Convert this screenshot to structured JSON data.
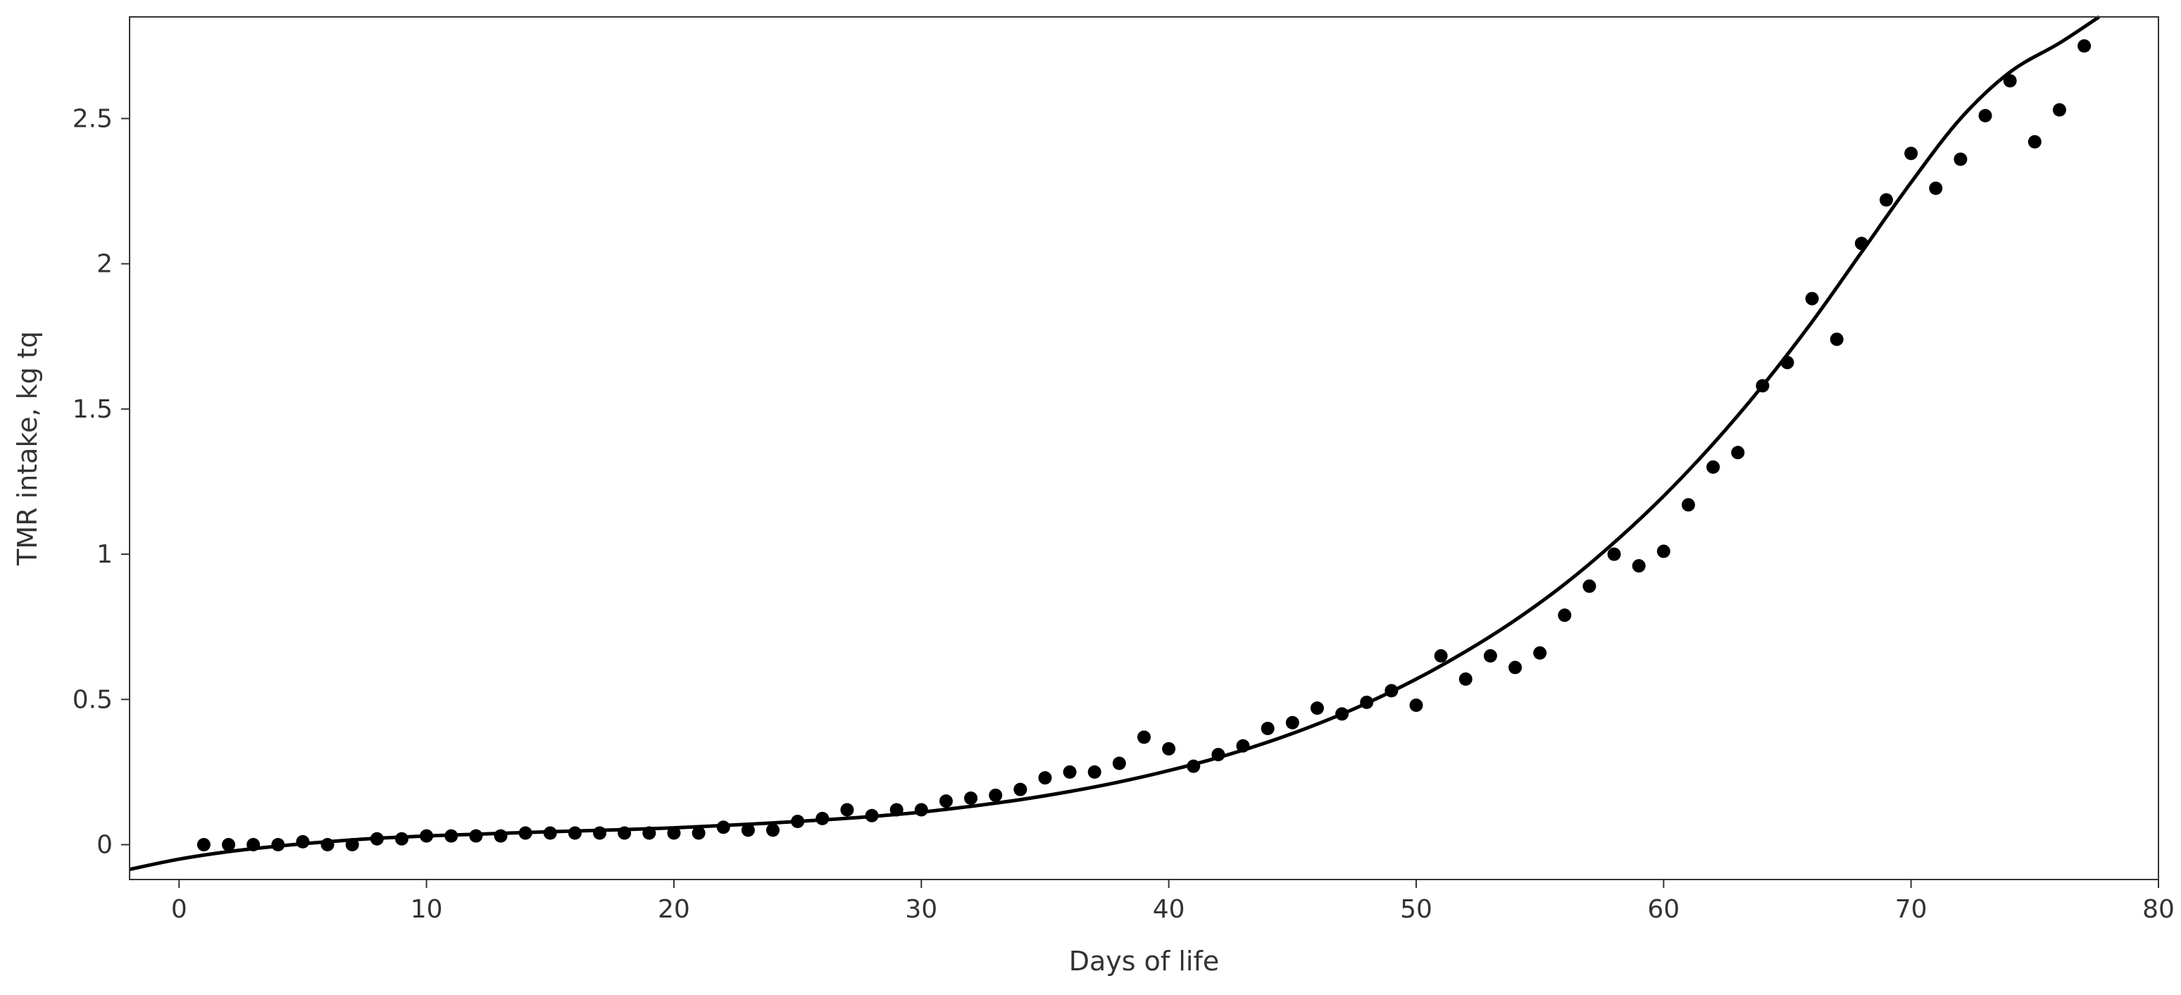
{
  "chart_data": {
    "type": "scatter",
    "xlabel": "Days of life",
    "ylabel": "TMR intake, kg tq",
    "xlim": [
      -2,
      80
    ],
    "ylim": [
      -0.12,
      2.85
    ],
    "xticks": [
      0,
      10,
      20,
      30,
      40,
      50,
      60,
      70,
      80
    ],
    "yticks": [
      0,
      0.5,
      1,
      1.5,
      2,
      2.5
    ],
    "xtick_labels": [
      "0",
      "10",
      "20",
      "30",
      "40",
      "50",
      "60",
      "70",
      "80"
    ],
    "ytick_labels": [
      "0",
      "0.5",
      "1",
      "1.5",
      "2",
      "2.5"
    ],
    "grid": false,
    "series": [
      {
        "kind": "points",
        "color": "#000000",
        "x": [
          1,
          2,
          3,
          4,
          5,
          6,
          7,
          8,
          9,
          10,
          11,
          12,
          13,
          14,
          15,
          16,
          17,
          18,
          19,
          20,
          21,
          22,
          23,
          24,
          25,
          26,
          27,
          28,
          29,
          30,
          31,
          32,
          33,
          34,
          35,
          36,
          37,
          38,
          39,
          40,
          41,
          42,
          43,
          44,
          45,
          46,
          47,
          48,
          49,
          50,
          51,
          52,
          53,
          54,
          55,
          56,
          57,
          58,
          59,
          60,
          61,
          62,
          63,
          64,
          65,
          66,
          67,
          68,
          69,
          70,
          71,
          72,
          73,
          74,
          75,
          76,
          77
        ],
        "y": [
          0.0,
          0.0,
          0.0,
          0.0,
          0.01,
          0.0,
          0.0,
          0.02,
          0.02,
          0.03,
          0.03,
          0.03,
          0.03,
          0.04,
          0.04,
          0.04,
          0.04,
          0.04,
          0.04,
          0.04,
          0.04,
          0.06,
          0.05,
          0.05,
          0.08,
          0.09,
          0.12,
          0.1,
          0.12,
          0.12,
          0.15,
          0.16,
          0.17,
          0.19,
          0.23,
          0.25,
          0.25,
          0.28,
          0.37,
          0.33,
          0.27,
          0.31,
          0.34,
          0.4,
          0.42,
          0.47,
          0.45,
          0.49,
          0.53,
          0.48,
          0.65,
          0.57,
          0.65,
          0.61,
          0.66,
          0.79,
          0.89,
          1.0,
          0.96,
          1.01,
          1.17,
          1.3,
          1.35,
          1.58,
          1.66,
          1.88,
          1.74,
          2.07,
          2.22,
          2.38,
          2.26,
          2.36,
          2.51,
          2.63,
          2.42,
          2.53,
          2.75
        ]
      },
      {
        "kind": "fitted-curve",
        "color": "#000000",
        "x": [
          -2,
          0,
          2,
          4,
          6,
          8,
          10,
          12,
          14,
          16,
          18,
          20,
          22,
          24,
          26,
          28,
          30,
          32,
          34,
          36,
          38,
          40,
          42,
          44,
          46,
          48,
          50,
          52,
          54,
          56,
          58,
          60,
          62,
          64,
          66,
          68,
          70,
          72,
          74,
          76,
          77.6
        ],
        "y": [
          -0.085,
          -0.05,
          -0.024,
          -0.005,
          0.01,
          0.022,
          0.03,
          0.036,
          0.042,
          0.047,
          0.052,
          0.058,
          0.066,
          0.075,
          0.085,
          0.097,
          0.112,
          0.132,
          0.155,
          0.183,
          0.216,
          0.255,
          0.3,
          0.353,
          0.415,
          0.487,
          0.57,
          0.665,
          0.773,
          0.897,
          1.04,
          1.2,
          1.38,
          1.58,
          1.8,
          2.04,
          2.28,
          2.5,
          2.66,
          2.76,
          2.85
        ]
      }
    ]
  }
}
